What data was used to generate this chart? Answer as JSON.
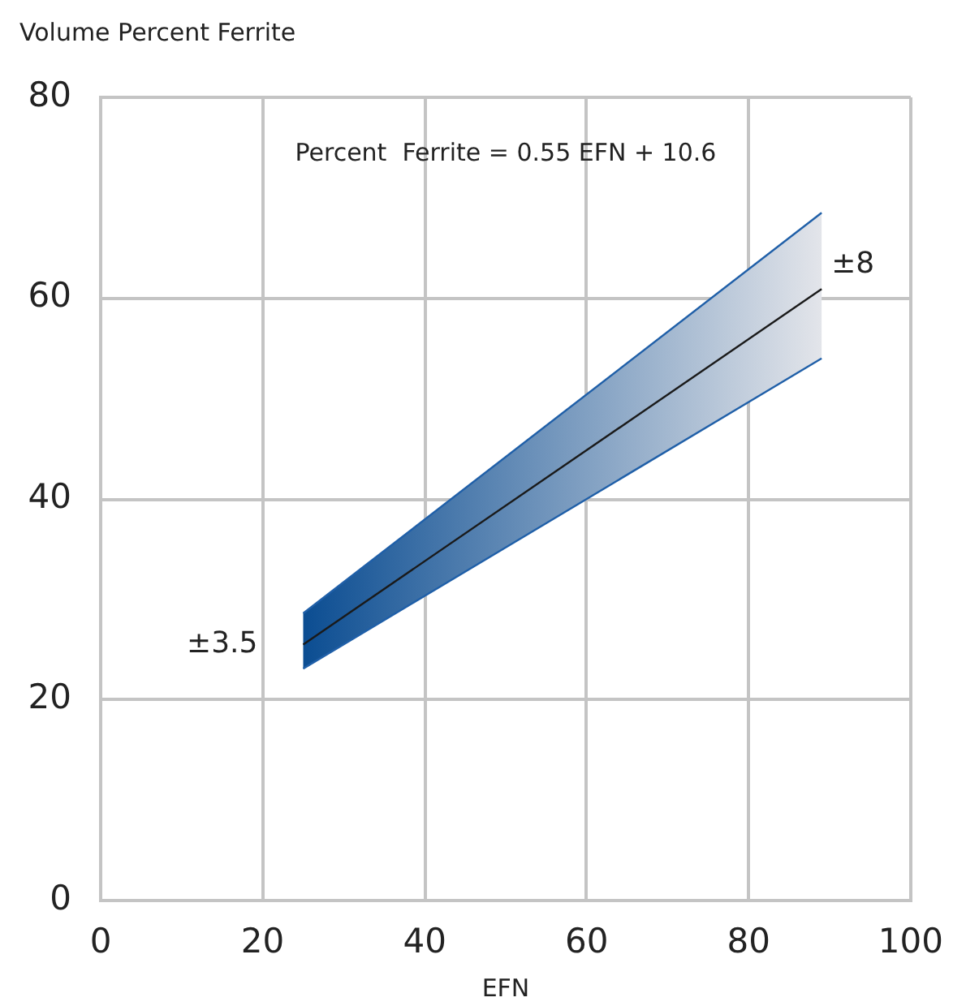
{
  "chart_data": {
    "type": "line",
    "ylabel": "Volume Percent Ferrite",
    "xlabel": "EFN",
    "x": [
      25,
      89
    ],
    "xlim": [
      0,
      100
    ],
    "xticks": [
      0,
      20,
      40,
      60,
      80,
      100
    ],
    "ylim": [
      0,
      80
    ],
    "yticks": [
      0,
      20,
      40,
      60,
      80
    ],
    "grid": true,
    "legend": false,
    "marker": "none",
    "series": [
      {
        "color": "#1a1a1a",
        "values": [
          25.5,
          60.9
        ],
        "lower": [
          23.1,
          54.0
        ],
        "upper": [
          28.6,
          68.5
        ]
      },
      {
        "type": "line",
        "color": "#1f5fa8",
        "values": [
          28.6,
          68.5
        ]
      },
      {
        "type": "line",
        "color": "#1f5fa8",
        "values": [
          23.1,
          54.0
        ]
      }
    ],
    "annotations": [
      "Percent  Ferrite = 0.55 EFN + 10.6",
      {
        "text": "±3.5",
        "x": 25,
        "y": 25.5
      },
      {
        "text": "±8",
        "x": 89,
        "y": 60.9
      }
    ]
  }
}
